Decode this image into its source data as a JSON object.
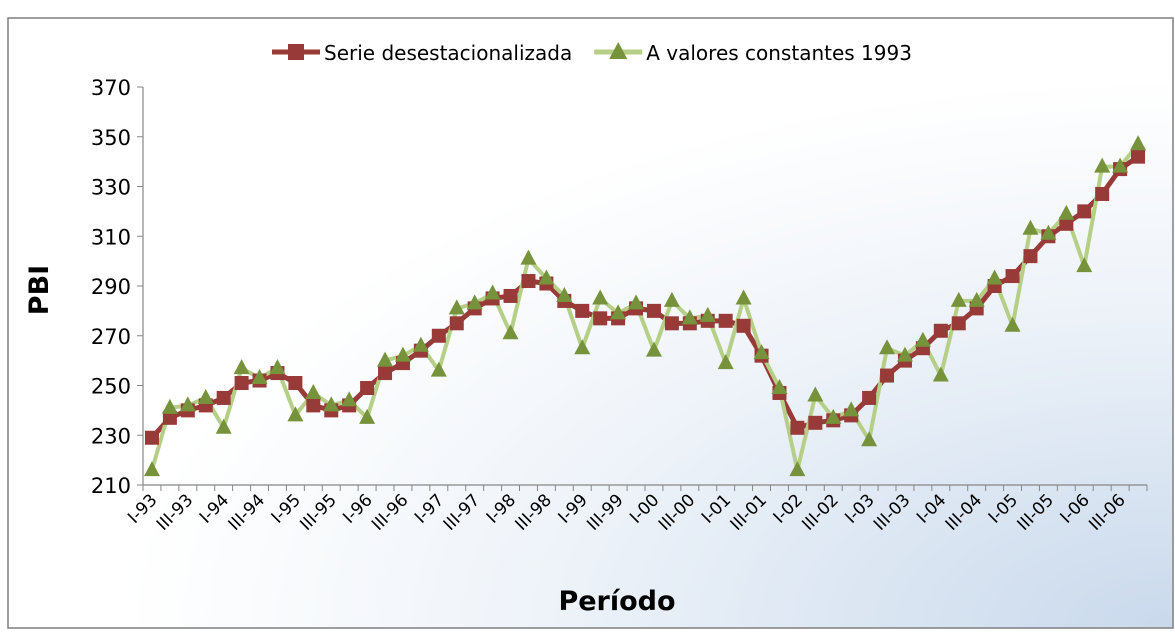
{
  "chart_data": {
    "type": "line",
    "x_label": "Período",
    "y_label": "PBI",
    "categories": [
      "I-93",
      null,
      "III-93",
      null,
      "I-94",
      null,
      "III-94",
      null,
      "I-95",
      null,
      "III-95",
      null,
      "I-96",
      null,
      "III-96",
      null,
      "I-97",
      null,
      "III-97",
      null,
      "I-98",
      null,
      "III-98",
      null,
      "I-99",
      null,
      "III-99",
      null,
      "I-00",
      null,
      "III-00",
      null,
      "I-01",
      null,
      "III-01",
      null,
      "I-02",
      null,
      "III-02",
      null,
      "I-03",
      null,
      "III-03",
      null,
      "I-04",
      null,
      "III-04",
      null,
      "I-05",
      null,
      "III-05",
      null,
      "I-06",
      null,
      "III-06",
      null
    ],
    "series": [
      {
        "name": "Serie desestacionalizada",
        "color": "#983a37",
        "marker": "square",
        "values": [
          229,
          237,
          240,
          242,
          245,
          251,
          252,
          255,
          251,
          242,
          240,
          242,
          249,
          255,
          259,
          264,
          270,
          275,
          281,
          285,
          286,
          292,
          291,
          284,
          280,
          277,
          277,
          281,
          280,
          275,
          275,
          276,
          276,
          274,
          262,
          247,
          233,
          235,
          236,
          238,
          245,
          254,
          260,
          265,
          272,
          275,
          281,
          290,
          294,
          302,
          310,
          315,
          320,
          327,
          337,
          342
        ]
      },
      {
        "name": "A valores constantes 1993",
        "color": "#b5cf86",
        "marker": "triangle",
        "marker_color": "#76933c",
        "values": [
          216,
          241,
          242,
          245,
          233,
          257,
          253,
          257,
          238,
          247,
          242,
          244,
          237,
          260,
          262,
          266,
          256,
          281,
          283,
          287,
          271,
          301,
          293,
          286,
          265,
          285,
          279,
          283,
          264,
          284,
          277,
          278,
          259,
          285,
          263,
          249,
          216,
          246,
          237,
          240,
          228,
          265,
          262,
          268,
          254,
          284,
          284,
          293,
          274,
          313,
          311,
          319,
          298,
          338,
          338,
          347
        ]
      }
    ],
    "ylim": [
      210,
      370
    ],
    "yticks": [
      210,
      230,
      250,
      270,
      290,
      310,
      330,
      350,
      370
    ],
    "grid": false,
    "legend": "top"
  }
}
